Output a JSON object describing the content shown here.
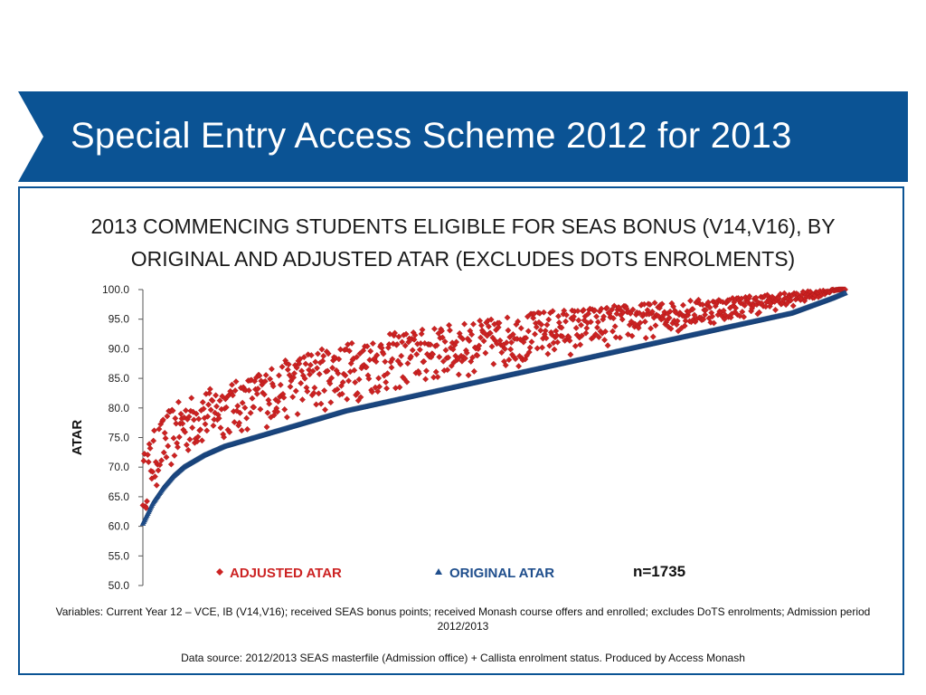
{
  "slide": {
    "title": "Special Entry Access Scheme 2012 for 2013"
  },
  "chart_title_line1": "2013 COMMENCING STUDENTS ELIGIBLE FOR SEAS BONUS (V14,V16), BY",
  "chart_title_line2": "ORIGINAL AND ADJUSTED ATAR (EXCLUDES DOTS ENROLMENTS)",
  "legend": {
    "adjusted_label": "ADJUSTED ATAR",
    "original_label": "ORIGINAL ATAR",
    "n_label": "n=1735"
  },
  "notes": {
    "variables": "Variables:  Current Year 12 – VCE, IB (V14,V16); received SEAS bonus points; received Monash course offers and enrolled; excludes DoTS enrolments; Admission period 2012/2013",
    "source": "Data source: 2012/2013 SEAS masterfile (Admission office) + Callista enrolment status. Produced by Access Monash"
  },
  "colors": {
    "banner": "#0b5394",
    "adjusted": "#cc2222",
    "original": "#1f4e8c"
  },
  "chart_data": {
    "type": "scatter",
    "title": "2013 COMMENCING STUDENTS ELIGIBLE FOR SEAS BONUS (V14,V16), BY ORIGINAL AND ADJUSTED ATAR (EXCLUDES DOTS ENROLMENTS)",
    "ylabel": "ATAR",
    "xlabel": "",
    "ylim": [
      50,
      100
    ],
    "xlim": [
      0,
      1735
    ],
    "yticks": [
      "50.0",
      "55.0",
      "60.0",
      "65.0",
      "70.0",
      "75.0",
      "80.0",
      "85.0",
      "90.0",
      "95.0",
      "100.0"
    ],
    "x_axis_labels": false,
    "legend_position": "bottom",
    "n": 1735,
    "series": [
      {
        "name": "ORIGINAL ATAR",
        "marker": "triangle",
        "description": "sorted ascending, one point per student",
        "x": [
          0,
          25,
          50,
          75,
          100,
          150,
          200,
          250,
          300,
          350,
          400,
          500,
          600,
          700,
          800,
          900,
          1000,
          1100,
          1200,
          1300,
          1400,
          1500,
          1600,
          1700,
          1735
        ],
        "values": [
          60.5,
          64.0,
          66.5,
          68.5,
          70.0,
          72.0,
          73.5,
          74.5,
          75.5,
          76.5,
          77.5,
          79.5,
          81.0,
          82.5,
          84.0,
          85.5,
          87.0,
          88.5,
          90.0,
          91.5,
          93.0,
          94.5,
          96.0,
          98.5,
          99.5
        ]
      },
      {
        "name": "ADJUSTED ATAR",
        "marker": "diamond",
        "description": "adjusted value per student, ordered by original ATAR; points spread from the original curve up to the upper envelope",
        "x": [
          0,
          25,
          50,
          75,
          100,
          150,
          200,
          250,
          300,
          350,
          400,
          500,
          600,
          700,
          800,
          900,
          1000,
          1100,
          1200,
          1300,
          1400,
          1500,
          1600,
          1700,
          1735
        ],
        "upper_envelope": [
          72.0,
          76.0,
          78.5,
          80.5,
          81.5,
          83.0,
          84.0,
          85.0,
          86.5,
          88.0,
          89.5,
          91.0,
          92.5,
          93.5,
          94.5,
          95.5,
          96.5,
          97.0,
          97.5,
          98.0,
          98.5,
          99.0,
          99.5,
          100.0,
          100.0
        ],
        "lower_bound_offset": 1.0
      }
    ]
  }
}
